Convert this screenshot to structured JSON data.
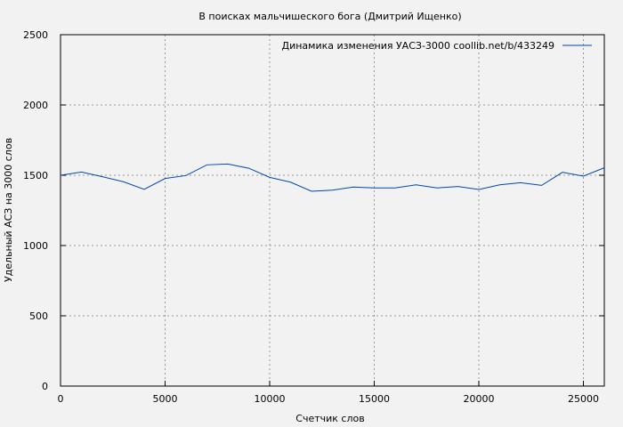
{
  "chart_data": {
    "type": "line",
    "title": "В поисках мальчишеского бога (Дмитрий Ищенко)",
    "xlabel": "Счетчик слов",
    "ylabel": "Удельный АСЗ на 3000 слов",
    "xlim": [
      0,
      26000
    ],
    "ylim": [
      0,
      2500
    ],
    "xticks": [
      0,
      5000,
      10000,
      15000,
      20000,
      25000
    ],
    "yticks": [
      0,
      500,
      1000,
      1500,
      2000,
      2500
    ],
    "grid": true,
    "legend_position": "top-right",
    "series": [
      {
        "name": "Динамика изменения УАСЗ-3000  coollib.net/b/433249",
        "color": "#0047ab",
        "x": [
          0,
          1000,
          2000,
          3000,
          4000,
          5000,
          6000,
          7000,
          8000,
          9000,
          10000,
          11000,
          12000,
          13000,
          14000,
          15000,
          16000,
          17000,
          18000,
          19000,
          20000,
          21000,
          22000,
          23000,
          24000,
          25000,
          26000
        ],
        "y": [
          1500,
          1523,
          1490,
          1454,
          1400,
          1477,
          1498,
          1574,
          1580,
          1550,
          1485,
          1451,
          1386,
          1394,
          1416,
          1410,
          1410,
          1432,
          1410,
          1420,
          1399,
          1432,
          1447,
          1428,
          1521,
          1494,
          1553
        ]
      }
    ]
  }
}
